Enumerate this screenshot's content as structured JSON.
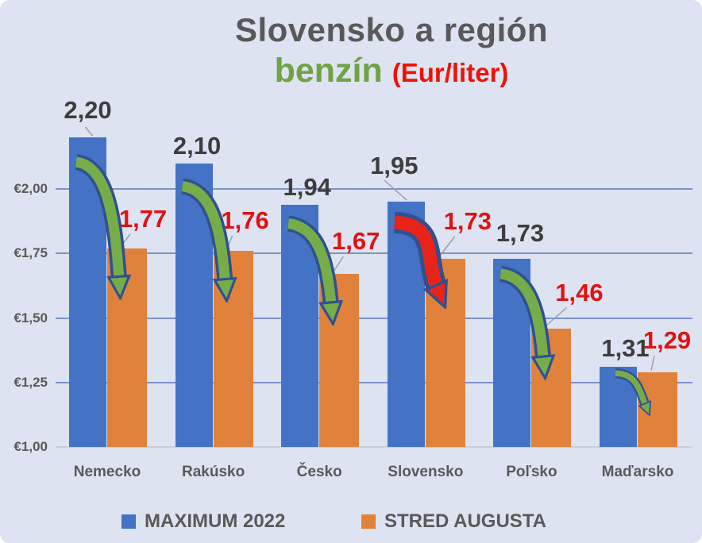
{
  "title": {
    "line1": "Slovensko a región",
    "line2_word": "benzín",
    "line2_unit": "(Eur/liter)"
  },
  "legend": [
    {
      "label": "MAXIMUM 2022",
      "swatch": "#4472c4"
    },
    {
      "label": "STRED AUGUSTA",
      "swatch": "#e0813c"
    }
  ],
  "colors": {
    "background": "#dde3f1",
    "title_text": "#595959",
    "title_fuel_green": "#6fa343",
    "title_unit_red": "#ee1208",
    "grid_line": "#7b92cc",
    "axis_baseline": "#c9cedb",
    "axis_text": "#595959",
    "category_text": "#595959",
    "legend_text": "#595959",
    "bar_blue": "#4472c4",
    "bar_orange": "#e0813c",
    "label_dark": "#3d3d3d",
    "label_red": "#e01212",
    "arrow_green": "#76ad4a",
    "arrow_red": "#e8231a",
    "arrow_outline": "#30508f",
    "leader_line": "#9aa0ab"
  },
  "chart_data": {
    "type": "bar",
    "title": "Slovensko a región",
    "subtitle": "benzín (Eur/liter)",
    "unit": "Eur/liter",
    "categories": [
      "Nemecko",
      "Rakúsko",
      "Česko",
      "Slovensko",
      "Poľsko",
      "Maďarsko"
    ],
    "series": [
      {
        "name": "MAXIMUM 2022",
        "values": [
          2.2,
          2.1,
          1.94,
          1.95,
          1.73,
          1.31
        ]
      },
      {
        "name": "STRED AUGUSTA",
        "values": [
          1.77,
          1.76,
          1.67,
          1.73,
          1.46,
          1.29
        ]
      }
    ],
    "y_axis": {
      "min": 1.0,
      "max": 2.25,
      "ticks": [
        {
          "value": 1.0,
          "label": "€1,00"
        },
        {
          "value": 1.25,
          "label": "€1,25"
        },
        {
          "value": 1.5,
          "label": "€1,50"
        },
        {
          "value": 1.75,
          "label": "€1,75"
        },
        {
          "value": 2.0,
          "label": "€2,00"
        }
      ]
    },
    "grid": "horizontal",
    "legend_position": "bottom",
    "decimal_separator": ",",
    "annotations": {
      "arrows": [
        {
          "category": "Nemecko",
          "color": "green",
          "size": "big"
        },
        {
          "category": "Rakúsko",
          "color": "green",
          "size": "big"
        },
        {
          "category": "Česko",
          "color": "green",
          "size": "big"
        },
        {
          "category": "Slovensko",
          "color": "red",
          "size": "big"
        },
        {
          "category": "Poľsko",
          "color": "green",
          "size": "big"
        },
        {
          "category": "Maďarsko",
          "color": "green",
          "size": "small"
        }
      ]
    }
  }
}
